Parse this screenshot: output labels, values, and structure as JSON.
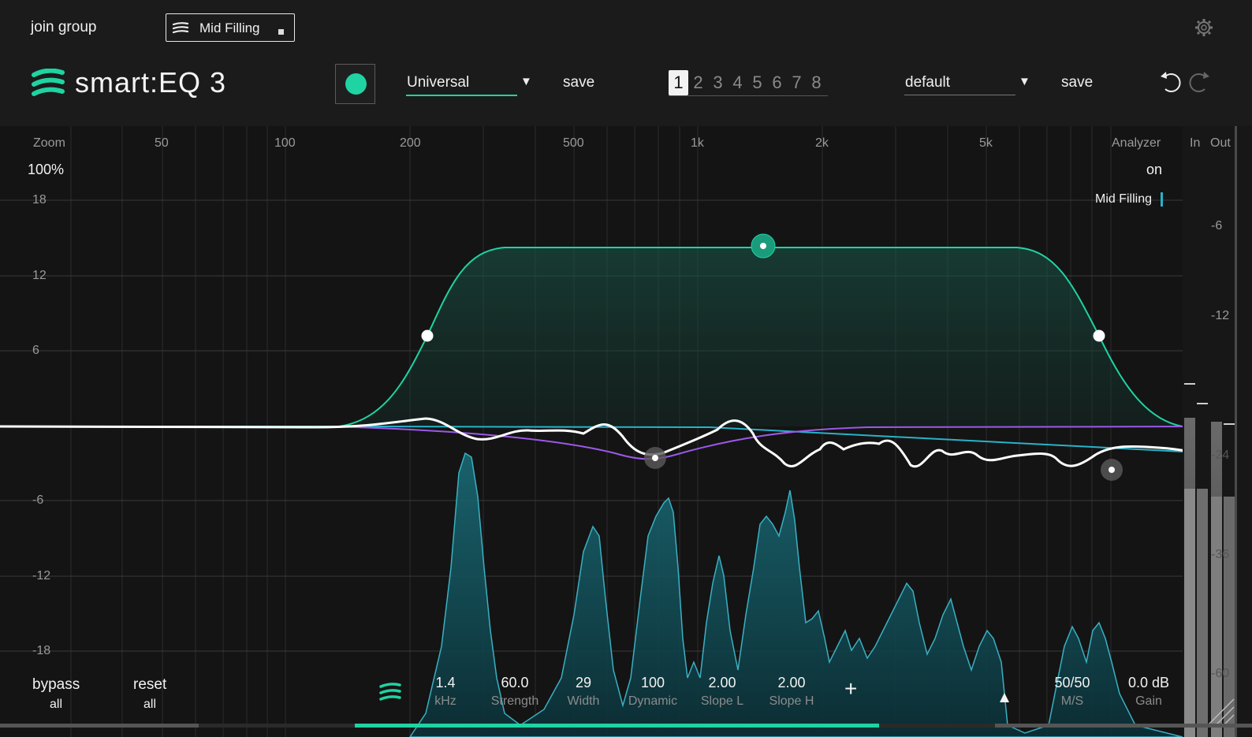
{
  "header": {
    "join_group": "join group",
    "group_name": "Mid Filling",
    "logo": "smart:EQ 3",
    "profile": "Universal",
    "save_profile": "save",
    "snapshots": [
      "1",
      "2",
      "3",
      "4",
      "5",
      "6",
      "7",
      "8"
    ],
    "active_snapshot": "1",
    "preset": "default",
    "save_preset": "save",
    "icons": [
      "settings-gear-icon",
      "undo-icon",
      "redo-icon",
      "dropdown-arrow-icon",
      "group-stack-icon",
      "lock-icon"
    ]
  },
  "graph": {
    "zoom_label": "Zoom",
    "zoom_value": "100%",
    "freq_labels": [
      "50",
      "100",
      "200",
      "500",
      "1k",
      "2k",
      "5k"
    ],
    "db_labels": [
      "18",
      "12",
      "6",
      "-6",
      "-12",
      "-18"
    ],
    "analyzer_label": "Analyzer",
    "analyzer_value": "on",
    "in_label": "In",
    "out_label": "Out",
    "group_tag": "Mid Filling",
    "meter_labels": [
      "-6",
      "-12",
      "-24",
      "-36",
      "-60"
    ]
  },
  "footer": {
    "bypass": "bypass",
    "bypass_sub": "all",
    "reset": "reset",
    "reset_sub": "all",
    "params": [
      {
        "value": "1.4",
        "caption": "kHz"
      },
      {
        "value": "60.0",
        "caption": "Strength"
      },
      {
        "value": "29",
        "caption": "Width"
      },
      {
        "value": "100",
        "caption": "Dynamic"
      },
      {
        "value": "2.00",
        "caption": "Slope L"
      },
      {
        "value": "2.00",
        "caption": "Slope H"
      }
    ],
    "add": "+",
    "ms_value": "50/50",
    "ms_caption": "M/S",
    "gain_value": "0.0 dB",
    "gain_caption": "Gain"
  },
  "colors": {
    "accent": "#1fd3a2",
    "curve": "#ffffff",
    "purple": "#9b59e8",
    "blue": "#27b3c9",
    "background": "#141414"
  }
}
